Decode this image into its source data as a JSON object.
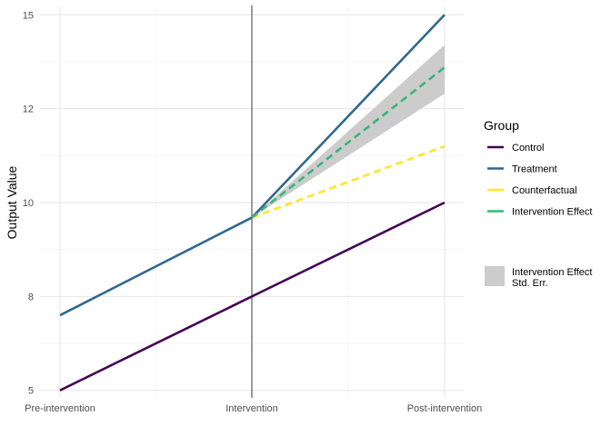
{
  "chart_data": {
    "type": "line",
    "x": [
      "Pre-intervention",
      "Intervention",
      "Post-intervention"
    ],
    "ylabel": "Output Value",
    "y_ticks": [
      {
        "value": 5,
        "label": "5"
      },
      {
        "value": 7.5,
        "label": "8"
      },
      {
        "value": 10,
        "label": "10"
      },
      {
        "value": 12.5,
        "label": "12"
      },
      {
        "value": 15,
        "label": "15"
      }
    ],
    "ylim": [
      4.8,
      15.2
    ],
    "grid": true,
    "intervention_line_at": "Intervention",
    "series": [
      {
        "name": "Control",
        "color": "#440154",
        "dash": "solid",
        "x": [
          "Pre-intervention",
          "Intervention",
          "Post-intervention"
        ],
        "values": [
          5.0,
          7.5,
          10.0
        ]
      },
      {
        "name": "Treatment",
        "color": "#31688E",
        "dash": "solid",
        "x": [
          "Pre-intervention",
          "Intervention",
          "Post-intervention"
        ],
        "values": [
          7.0,
          9.6,
          15.0
        ]
      },
      {
        "name": "Counterfactual",
        "color": "#FDE725",
        "dash": "dashed",
        "x": [
          "Intervention",
          "Post-intervention"
        ],
        "values": [
          9.6,
          11.5
        ]
      },
      {
        "name": "Intervention Effect",
        "color": "#35B779",
        "dash": "dashed",
        "x": [
          "Intervention",
          "Post-intervention"
        ],
        "values": [
          9.6,
          13.6
        ]
      }
    ],
    "error_band": {
      "legend_label_lines": [
        "Intervention Effect",
        "Std. Err."
      ],
      "color": "#cccccc",
      "x": [
        "Intervention",
        "Post-intervention"
      ],
      "lower": [
        9.6,
        12.9
      ],
      "upper": [
        9.6,
        14.2
      ]
    },
    "legend": {
      "title": "Group",
      "position": "right"
    }
  }
}
